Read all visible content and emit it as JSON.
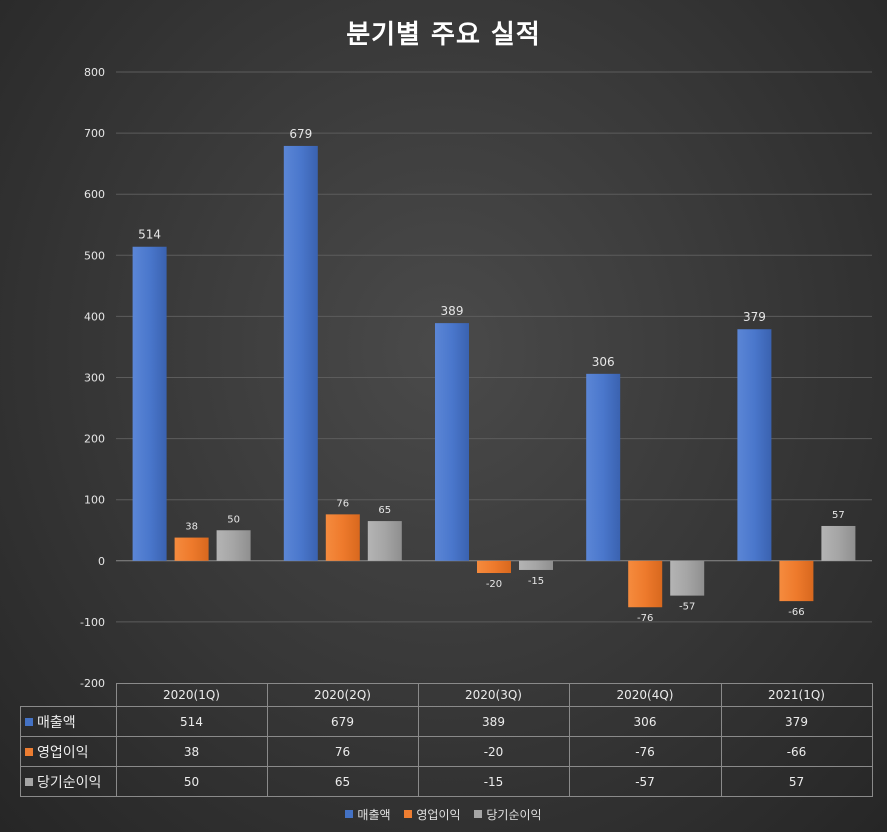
{
  "chart_data": {
    "type": "bar",
    "title": "분기별 주요 실적",
    "categories": [
      "2020(1Q)",
      "2020(2Q)",
      "2020(3Q)",
      "2020(4Q)",
      "2021(1Q)"
    ],
    "series": [
      {
        "name": "매출액",
        "values": [
          514,
          679,
          389,
          306,
          379
        ],
        "color": "#4472c4"
      },
      {
        "name": "영업이익",
        "values": [
          38,
          76,
          -20,
          -76,
          -66
        ],
        "color": "#ed7d31"
      },
      {
        "name": "당기순이익",
        "values": [
          50,
          65,
          -15,
          -57,
          57
        ],
        "color": "#a5a5a5"
      }
    ],
    "yticks": [
      800,
      700,
      600,
      500,
      400,
      300,
      200,
      100,
      0,
      -100,
      -200
    ],
    "ylim": [
      -200,
      800
    ],
    "grid": true,
    "legend": "bottom",
    "data_table": true
  }
}
